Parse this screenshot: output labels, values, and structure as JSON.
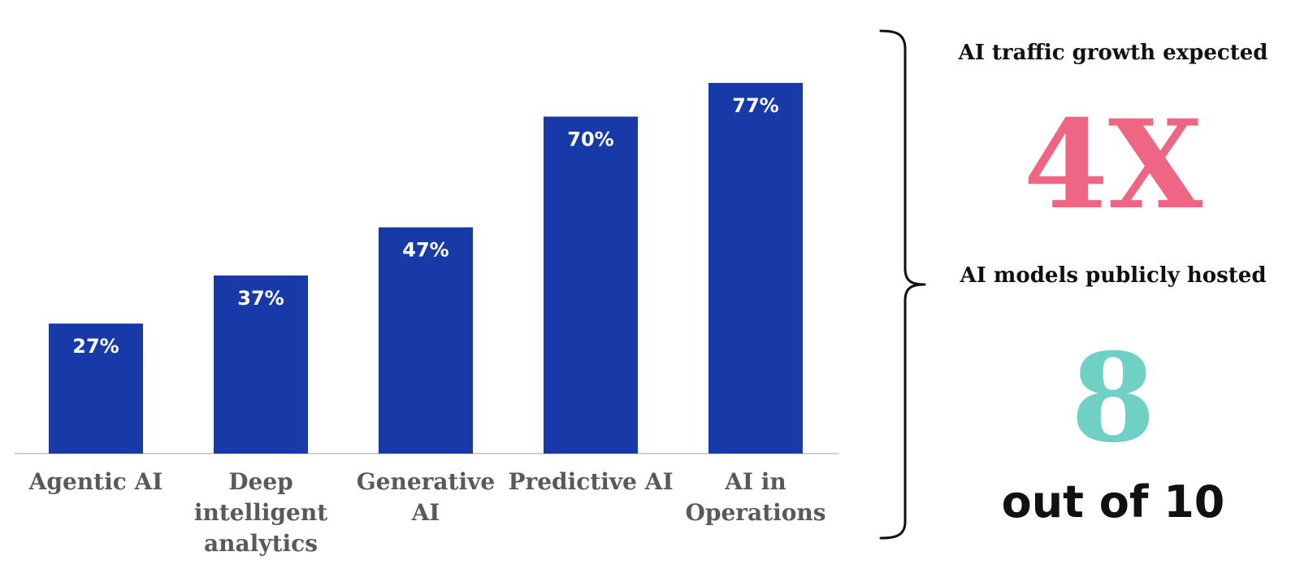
{
  "chart_data": {
    "type": "bar",
    "categories": [
      [
        "Agentic AI"
      ],
      [
        "Deep",
        "intelligent",
        "analytics"
      ],
      [
        "Generative",
        "AI"
      ],
      [
        "Predictive AI"
      ],
      [
        "AI in",
        "Operations"
      ]
    ],
    "values": [
      27,
      37,
      47,
      70,
      77
    ],
    "data_labels": [
      "27%",
      "37%",
      "47%",
      "70%",
      "77%"
    ],
    "ylim": [
      0,
      100
    ],
    "grid": false,
    "legend": "none",
    "bar_color": "#1839a8",
    "label_color": "#ffffff"
  },
  "stats": {
    "traffic_caption": "AI traffic growth expected",
    "traffic_value": "4X",
    "models_caption": "AI models publicly hosted",
    "models_value": "8",
    "models_suffix": "out of 10",
    "accent_pink": "#ef6685",
    "accent_teal": "#6fd1c4"
  }
}
